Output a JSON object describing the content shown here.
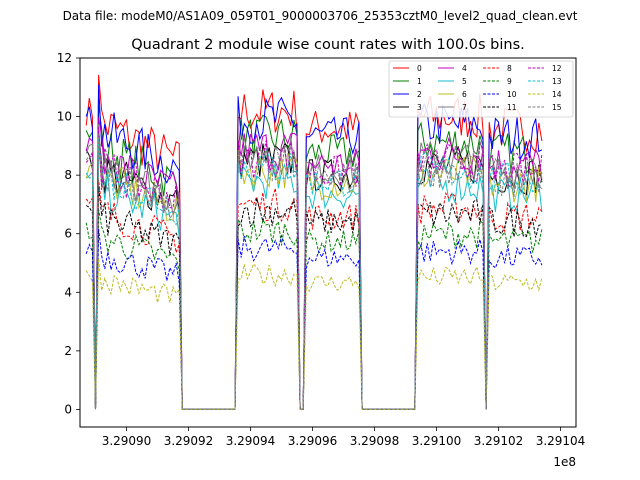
{
  "header": {
    "data_file_label": "Data file: modeM0/AS1A09_059T01_9000003706_25353cztM0_level2_quad_clean.evt"
  },
  "chart_data": {
    "type": "line",
    "title": "Quadrant 2 module wise count rates with 100.0s bins.",
    "xlabel": "",
    "ylabel": "",
    "x_offset_label": "1e8",
    "xlim": [
      3.290885,
      3.291045
    ],
    "ylim": [
      -0.6,
      12
    ],
    "xticks": [
      3.2909,
      3.29092,
      3.29094,
      3.29096,
      3.29098,
      3.291,
      3.29102,
      3.29104
    ],
    "xtick_labels": [
      "3.29090",
      "3.29092",
      "3.29094",
      "3.29096",
      "3.29098",
      "3.29100",
      "3.29102",
      "3.29104"
    ],
    "yticks": [
      0,
      2,
      4,
      6,
      8,
      10,
      12
    ],
    "ytick_labels": [
      "0",
      "2",
      "4",
      "6",
      "8",
      "10",
      "12"
    ],
    "legend_position": "top-right",
    "segments": [
      {
        "start": 3.290887,
        "end": 3.290917,
        "level": 1.0
      },
      {
        "start": 3.290929,
        "end": 3.290959,
        "level": 1.05
      },
      {
        "start": 3.290987,
        "end": 3.291017,
        "level": 0.98
      }
    ],
    "series": [
      {
        "name": "0",
        "color": "#ff0000",
        "dash": "solid",
        "base": 10.2
      },
      {
        "name": "1",
        "color": "#008000",
        "dash": "solid",
        "base": 9.3
      },
      {
        "name": "2",
        "color": "#0000ff",
        "dash": "solid",
        "base": 9.9
      },
      {
        "name": "3",
        "color": "#000000",
        "dash": "solid",
        "base": 8.5
      },
      {
        "name": "4",
        "color": "#bf00bf",
        "dash": "solid",
        "base": 8.9
      },
      {
        "name": "5",
        "color": "#17becf",
        "dash": "solid",
        "base": 7.8
      },
      {
        "name": "6",
        "color": "#bcbd22",
        "dash": "solid",
        "base": 8.2
      },
      {
        "name": "7",
        "color": "#7f7f7f",
        "dash": "solid",
        "base": 8.7
      },
      {
        "name": "8",
        "color": "#ff0000",
        "dash": "dashed",
        "base": 7.0
      },
      {
        "name": "9",
        "color": "#008000",
        "dash": "dashed",
        "base": 6.1
      },
      {
        "name": "10",
        "color": "#0000ff",
        "dash": "dashed",
        "base": 5.5
      },
      {
        "name": "11",
        "color": "#000000",
        "dash": "dashed",
        "base": 6.8
      },
      {
        "name": "12",
        "color": "#bf00bf",
        "dash": "dashed",
        "base": 8.6
      },
      {
        "name": "13",
        "color": "#17becf",
        "dash": "dashed",
        "base": 8.3
      },
      {
        "name": "14",
        "color": "#bcbd22",
        "dash": "dashed",
        "base": 4.6
      },
      {
        "name": "15",
        "color": "#7f7f7f",
        "dash": "dashed",
        "base": 8.4
      }
    ]
  }
}
